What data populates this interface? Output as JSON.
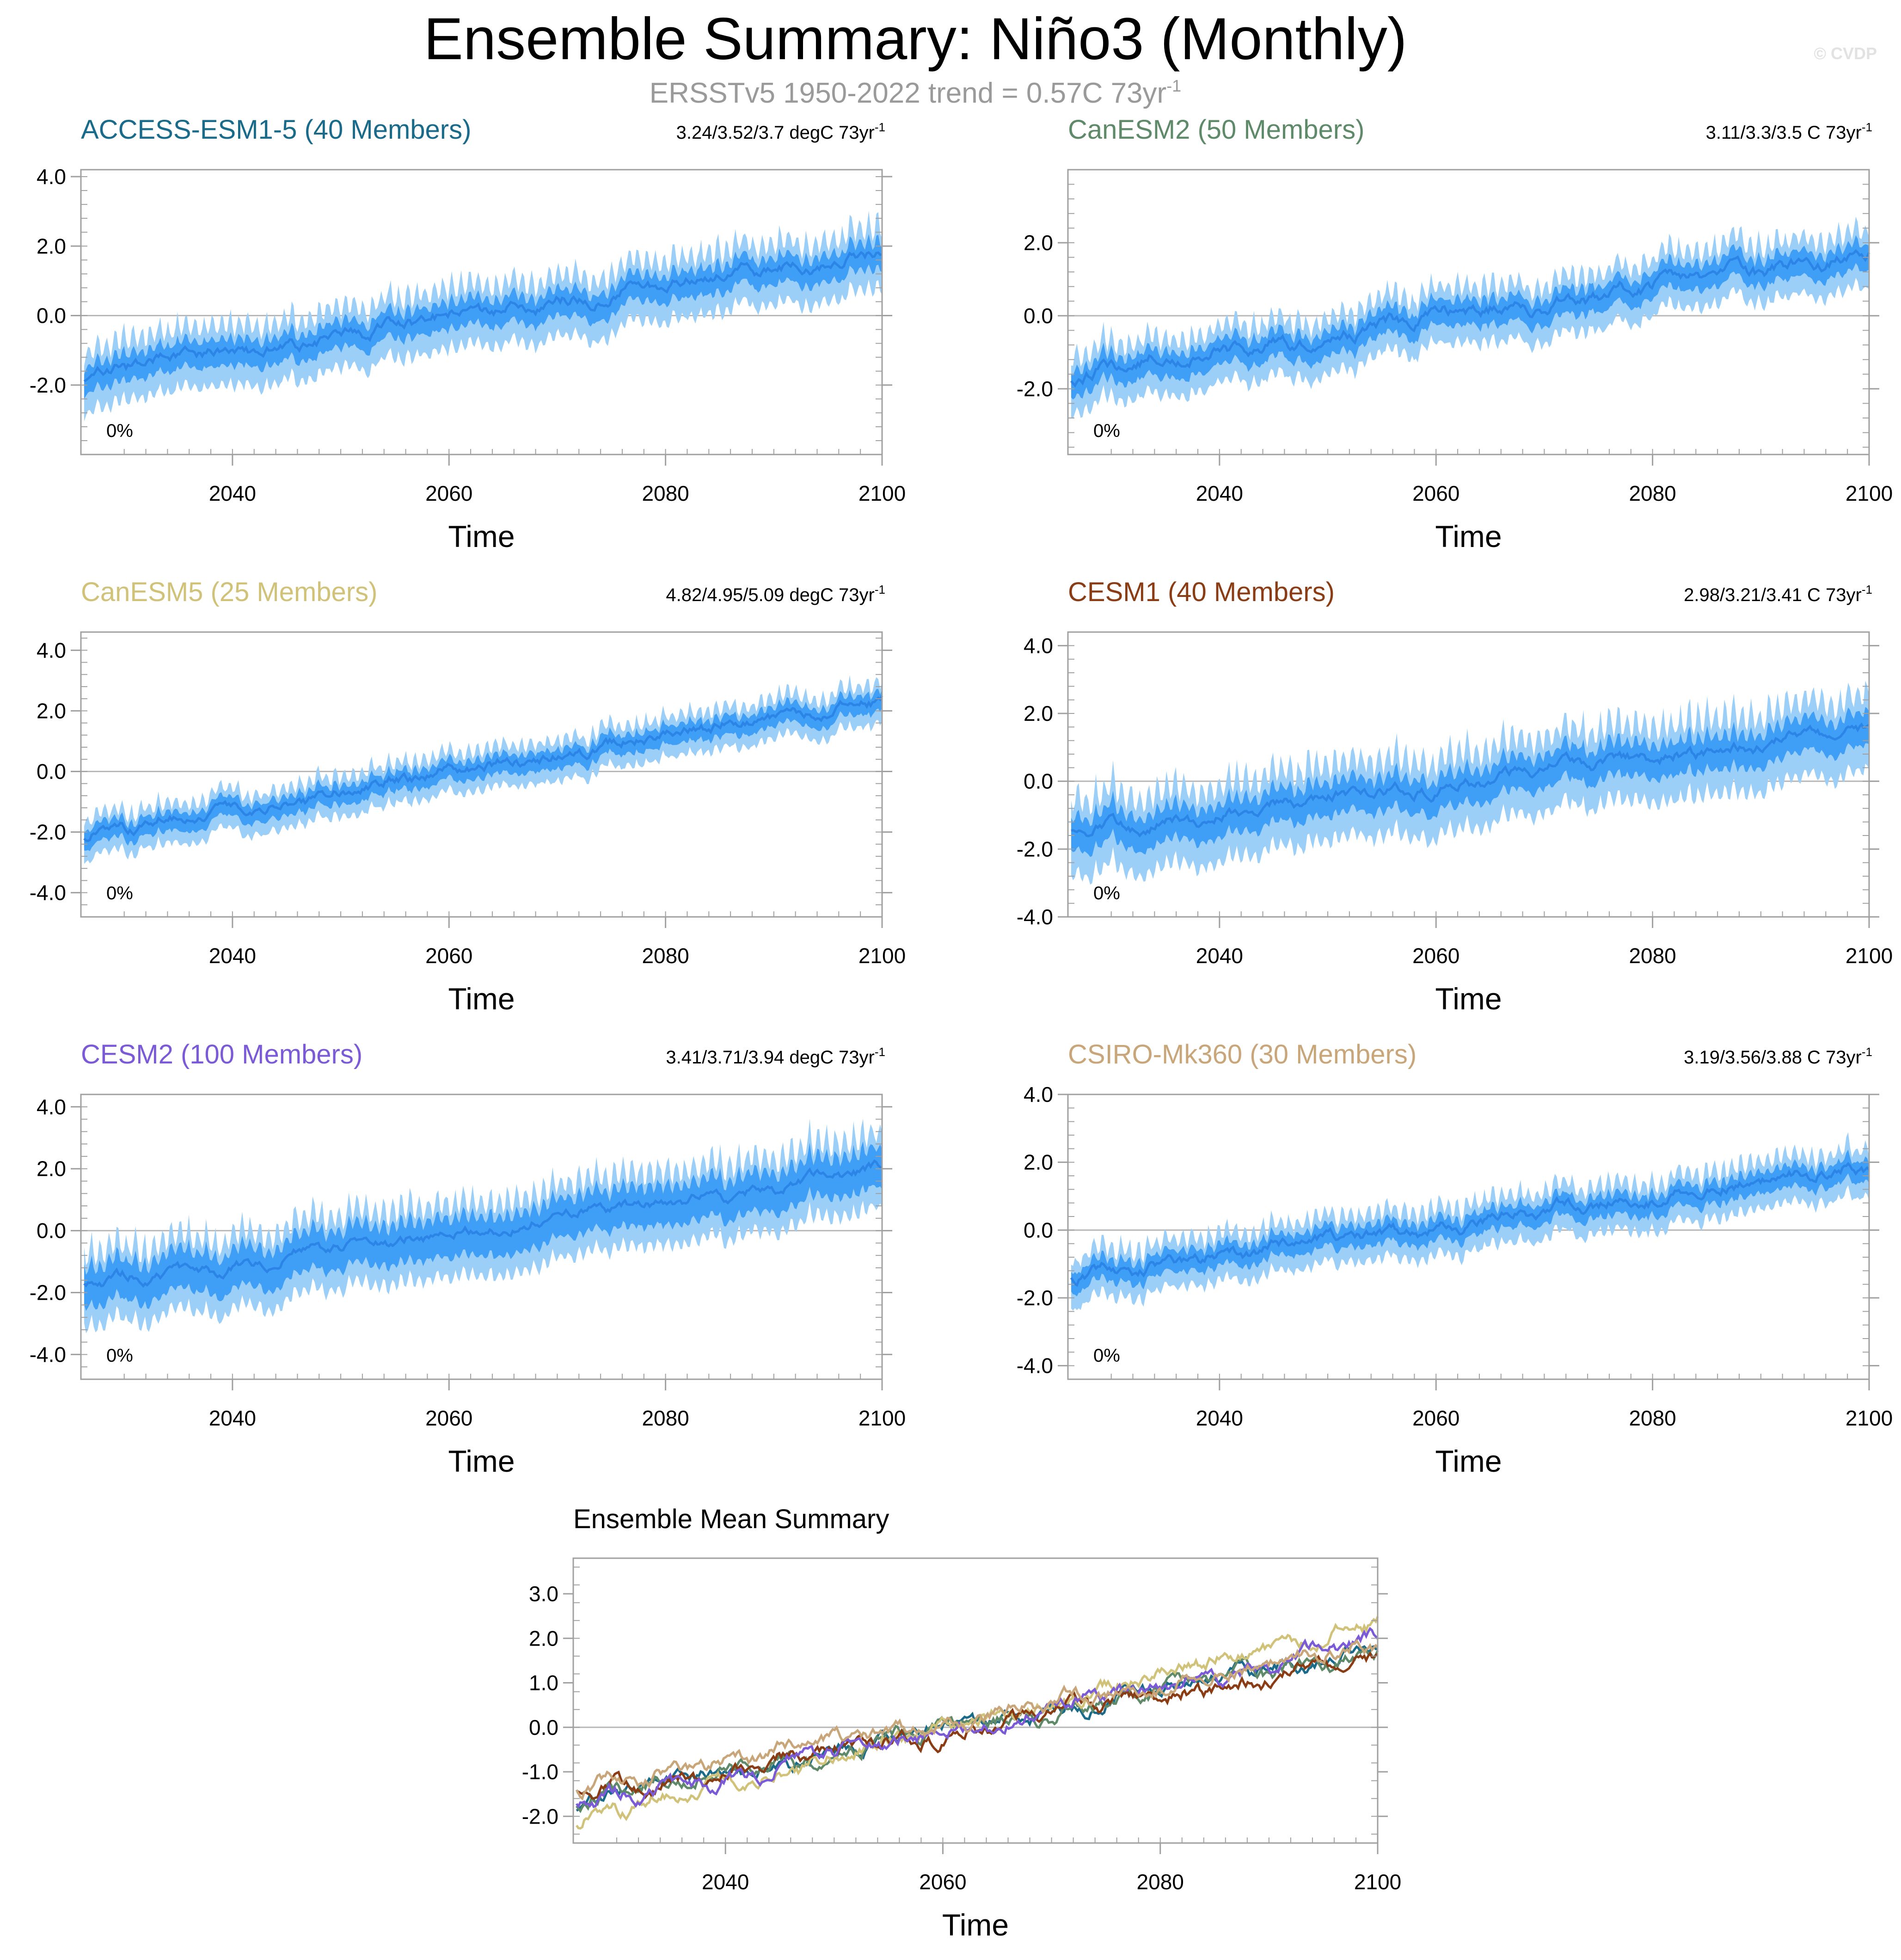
{
  "figure": {
    "title": "Ensemble Summary: Niño3 (Monthly)",
    "subtitle_main": "ERSSTv5 1950-2022 trend = 0.57C 73yr",
    "subtitle_sup": "-1",
    "watermark": "© CVDP"
  },
  "colors": {
    "band_outer": "#9ccff8",
    "band_inner": "#3f9ef5",
    "mean_line": "#2b84e6",
    "zero_line": "#b8b8b8",
    "frame": "#a0a0a0"
  },
  "chart_data": [
    {
      "type": "area",
      "title": "ACCESS-ESM1-5 (40 Members)",
      "title_color": "#1a6a8a",
      "trend_text": "3.24/3.52/3.7 degC 73yr",
      "trend_sup": "-1",
      "pct_label": "0%",
      "xlabel": "Time",
      "xlim": [
        2026,
        2100
      ],
      "xticks": [
        2040,
        2060,
        2080,
        2100
      ],
      "xtick_labels": [
        "2040",
        "2060",
        "2080",
        "2100"
      ],
      "ylim": [
        -4.0,
        4.2
      ],
      "yticks": [
        4.0,
        2.0,
        0.0,
        -2.0
      ],
      "ytick_labels": [
        "4.0",
        "2.0",
        "0.0",
        "-2.0"
      ],
      "mean_start": -1.7,
      "mean_end": 1.85,
      "inner_halfwidth": 0.55,
      "outer_halfwidth": 1.25,
      "seed": 11
    },
    {
      "type": "area",
      "title": "CanESM2 (50 Members)",
      "title_color": "#5e8a6a",
      "trend_text": "3.11/3.3/3.5 C 73yr",
      "trend_sup": "-1",
      "pct_label": "0%",
      "xlabel": "Time",
      "xlim": [
        2026,
        2100
      ],
      "xticks": [
        2040,
        2060,
        2080,
        2100
      ],
      "xtick_labels": [
        "2040",
        "2060",
        "2080",
        "2100"
      ],
      "ylim": [
        -3.8,
        4.0
      ],
      "yticks": [
        2.0,
        0.0,
        -2.0
      ],
      "ytick_labels": [
        "2.0",
        "0.0",
        "-2.0"
      ],
      "mean_start": -1.6,
      "mean_end": 1.7,
      "inner_halfwidth": 0.5,
      "outer_halfwidth": 1.1,
      "seed": 23
    },
    {
      "type": "area",
      "title": "CanESM5 (25 Members)",
      "title_color": "#d1c27a",
      "trend_text": "4.82/4.95/5.09 degC 73yr",
      "trend_sup": "-1",
      "pct_label": "0%",
      "xlabel": "Time",
      "xlim": [
        2026,
        2100
      ],
      "xticks": [
        2040,
        2060,
        2080,
        2100
      ],
      "xtick_labels": [
        "2040",
        "2060",
        "2080",
        "2100"
      ],
      "ylim": [
        -4.8,
        4.6
      ],
      "yticks": [
        4.0,
        2.0,
        0.0,
        -2.0,
        -4.0
      ],
      "ytick_labels": [
        "4.0",
        "2.0",
        "0.0",
        "-2.0",
        "-4.0"
      ],
      "mean_start": -2.1,
      "mean_end": 2.4,
      "inner_halfwidth": 0.45,
      "outer_halfwidth": 0.95,
      "seed": 37
    },
    {
      "type": "area",
      "title": "CESM1 (40 Members)",
      "title_color": "#8a3c14",
      "trend_text": "2.98/3.21/3.41 C 73yr",
      "trend_sup": "-1",
      "pct_label": "0%",
      "xlabel": "Time",
      "xlim": [
        2026,
        2100
      ],
      "xticks": [
        2040,
        2060,
        2080,
        2100
      ],
      "xtick_labels": [
        "2040",
        "2060",
        "2080",
        "2100"
      ],
      "ylim": [
        -4.0,
        4.4
      ],
      "yticks": [
        4.0,
        2.0,
        0.0,
        -2.0,
        -4.0
      ],
      "ytick_labels": [
        "4.0",
        "2.0",
        "0.0",
        "-2.0",
        "-4.0"
      ],
      "mean_start": -1.5,
      "mean_end": 1.5,
      "inner_halfwidth": 0.7,
      "outer_halfwidth": 1.6,
      "seed": 41
    },
    {
      "type": "area",
      "title": "CESM2 (100 Members)",
      "title_color": "#7a5ad6",
      "trend_text": "3.41/3.71/3.94 degC 73yr",
      "trend_sup": "-1",
      "pct_label": "0%",
      "xlabel": "Time",
      "xlim": [
        2026,
        2100
      ],
      "xticks": [
        2040,
        2060,
        2080,
        2100
      ],
      "xtick_labels": [
        "2040",
        "2060",
        "2080",
        "2100"
      ],
      "ylim": [
        -4.8,
        4.4
      ],
      "yticks": [
        4.0,
        2.0,
        0.0,
        -2.0,
        -4.0
      ],
      "ytick_labels": [
        "4.0",
        "2.0",
        "0.0",
        "-2.0",
        "-4.0"
      ],
      "mean_start": -1.8,
      "mean_end": 1.9,
      "inner_halfwidth": 0.9,
      "outer_halfwidth": 1.7,
      "seed": 53
    },
    {
      "type": "area",
      "title": "CSIRO-Mk360 (30 Members)",
      "title_color": "#c8a679",
      "trend_text": "3.19/3.56/3.88 C 73yr",
      "trend_sup": "-1",
      "pct_label": "0%",
      "xlabel": "Time",
      "xlim": [
        2026,
        2100
      ],
      "xticks": [
        2040,
        2060,
        2080,
        2100
      ],
      "xtick_labels": [
        "2040",
        "2060",
        "2080",
        "2100"
      ],
      "ylim": [
        -4.4,
        4.0
      ],
      "yticks": [
        4.0,
        2.0,
        0.0,
        -2.0,
        -4.0
      ],
      "ytick_labels": [
        "4.0",
        "2.0",
        "0.0",
        "-2.0",
        "-4.0"
      ],
      "mean_start": -1.4,
      "mean_end": 1.85,
      "inner_halfwidth": 0.45,
      "outer_halfwidth": 1.0,
      "seed": 67
    },
    {
      "type": "line",
      "title": "Ensemble Mean Summary",
      "title_color": "#000000",
      "xlabel": "Time",
      "xlim": [
        2026,
        2100
      ],
      "xticks": [
        2040,
        2060,
        2080,
        2100
      ],
      "xtick_labels": [
        "2040",
        "2060",
        "2080",
        "2100"
      ],
      "ylim": [
        -2.6,
        3.8
      ],
      "yticks": [
        3.0,
        2.0,
        1.0,
        0.0,
        -1.0,
        -2.0
      ],
      "ytick_labels": [
        "3.0",
        "2.0",
        "1.0",
        "0.0",
        "-1.0",
        "-2.0"
      ],
      "series": [
        {
          "name": "ACCESS-ESM1-5",
          "color": "#1a6a8a",
          "start": -1.7,
          "end": 1.85,
          "seed": 11
        },
        {
          "name": "CanESM2",
          "color": "#5e8a6a",
          "start": -1.6,
          "end": 1.7,
          "seed": 23
        },
        {
          "name": "CanESM5",
          "color": "#d1c27a",
          "start": -2.1,
          "end": 2.4,
          "seed": 37
        },
        {
          "name": "CESM1",
          "color": "#8a3c14",
          "start": -1.5,
          "end": 1.5,
          "seed": 41
        },
        {
          "name": "CESM2",
          "color": "#7a5ad6",
          "start": -1.8,
          "end": 1.9,
          "seed": 53
        },
        {
          "name": "CSIRO-Mk360",
          "color": "#c8a679",
          "start": -1.4,
          "end": 1.85,
          "seed": 67
        }
      ]
    }
  ]
}
